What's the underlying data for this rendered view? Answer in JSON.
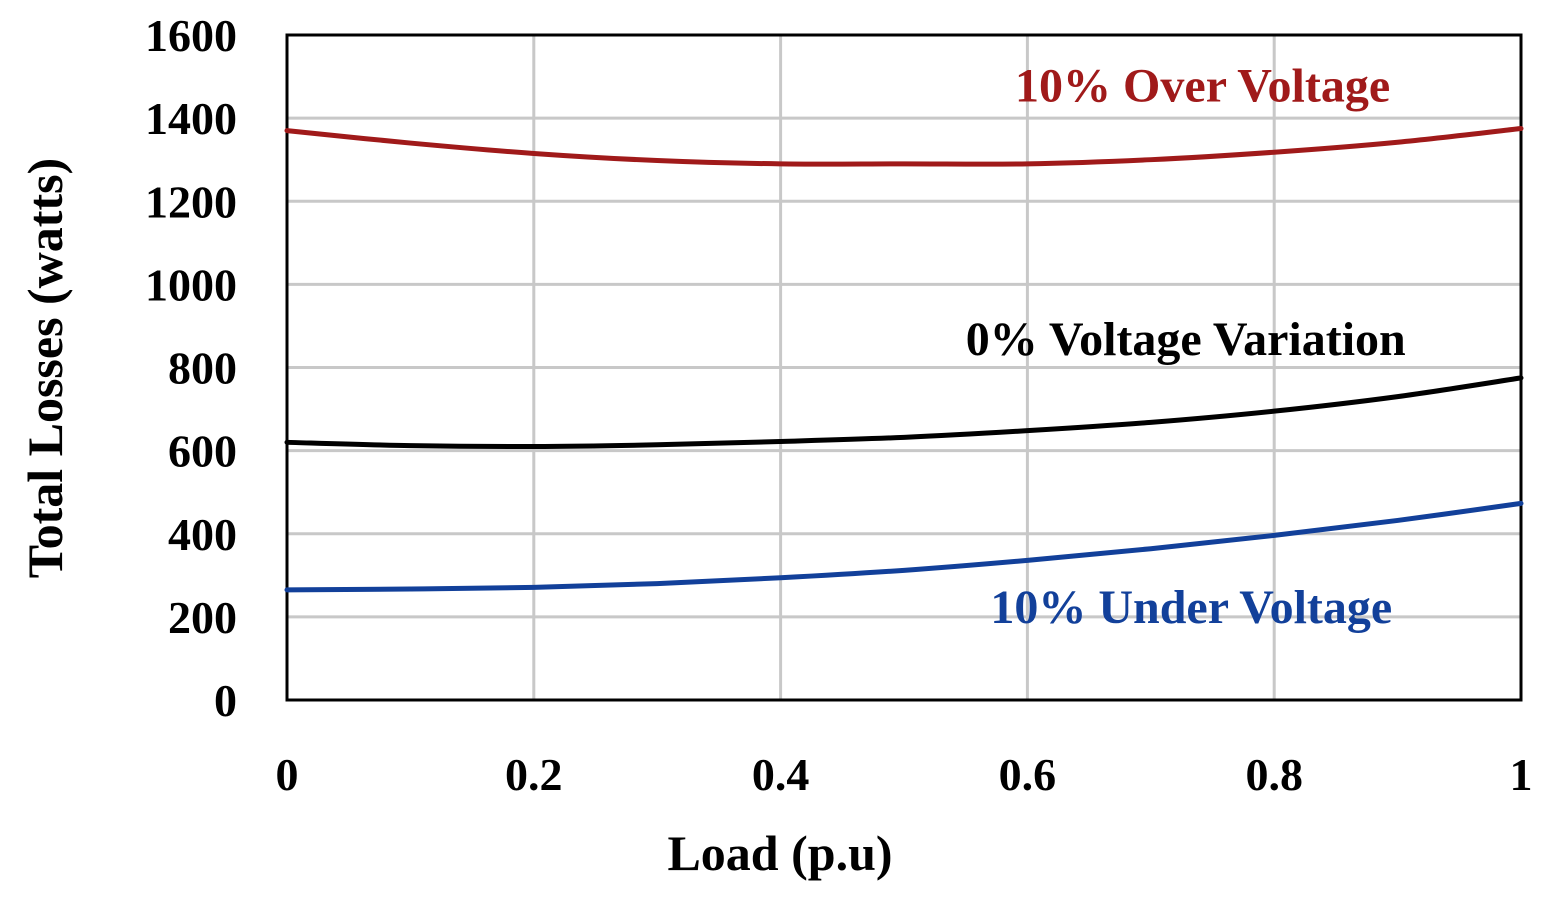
{
  "chart_data": {
    "type": "line",
    "title": "",
    "xlabel": "Load (p.u)",
    "ylabel": "Total Losses (watts)",
    "xlim": [
      0,
      1
    ],
    "ylim": [
      0,
      1600
    ],
    "x_ticks": [
      0,
      0.2,
      0.4,
      0.6,
      0.8,
      1
    ],
    "x_tick_labels": [
      "0",
      "0.2",
      "0.4",
      "0.6",
      "0.8",
      "1"
    ],
    "y_ticks": [
      0,
      200,
      400,
      600,
      800,
      1000,
      1200,
      1400,
      1600
    ],
    "y_tick_labels": [
      "0",
      "200",
      "400",
      "600",
      "800",
      "1000",
      "1200",
      "1400",
      "1600"
    ],
    "grid": true,
    "series": [
      {
        "name": "10% Over Voltage",
        "color": "#a01a1a",
        "x": [
          0,
          0.1,
          0.2,
          0.3,
          0.4,
          0.5,
          0.6,
          0.7,
          0.8,
          0.9,
          1
        ],
        "values": [
          1370,
          1340,
          1315,
          1298,
          1290,
          1290,
          1290,
          1300,
          1318,
          1342,
          1375
        ],
        "label_anchor": [
          0.59,
          1440
        ]
      },
      {
        "name": "0% Voltage Variation",
        "color": "#000000",
        "x": [
          0,
          0.1,
          0.2,
          0.3,
          0.4,
          0.5,
          0.6,
          0.7,
          0.8,
          0.9,
          1
        ],
        "values": [
          620,
          612,
          610,
          614,
          622,
          632,
          648,
          668,
          695,
          730,
          775
        ],
        "label_anchor": [
          0.55,
          830
        ]
      },
      {
        "name": "10% Under Voltage",
        "color": "#12409a",
        "x": [
          0,
          0.1,
          0.2,
          0.3,
          0.4,
          0.5,
          0.6,
          0.7,
          0.8,
          0.9,
          1
        ],
        "values": [
          265,
          267,
          271,
          280,
          294,
          312,
          336,
          364,
          396,
          432,
          473
        ],
        "label_anchor": [
          0.57,
          185
        ]
      }
    ]
  }
}
